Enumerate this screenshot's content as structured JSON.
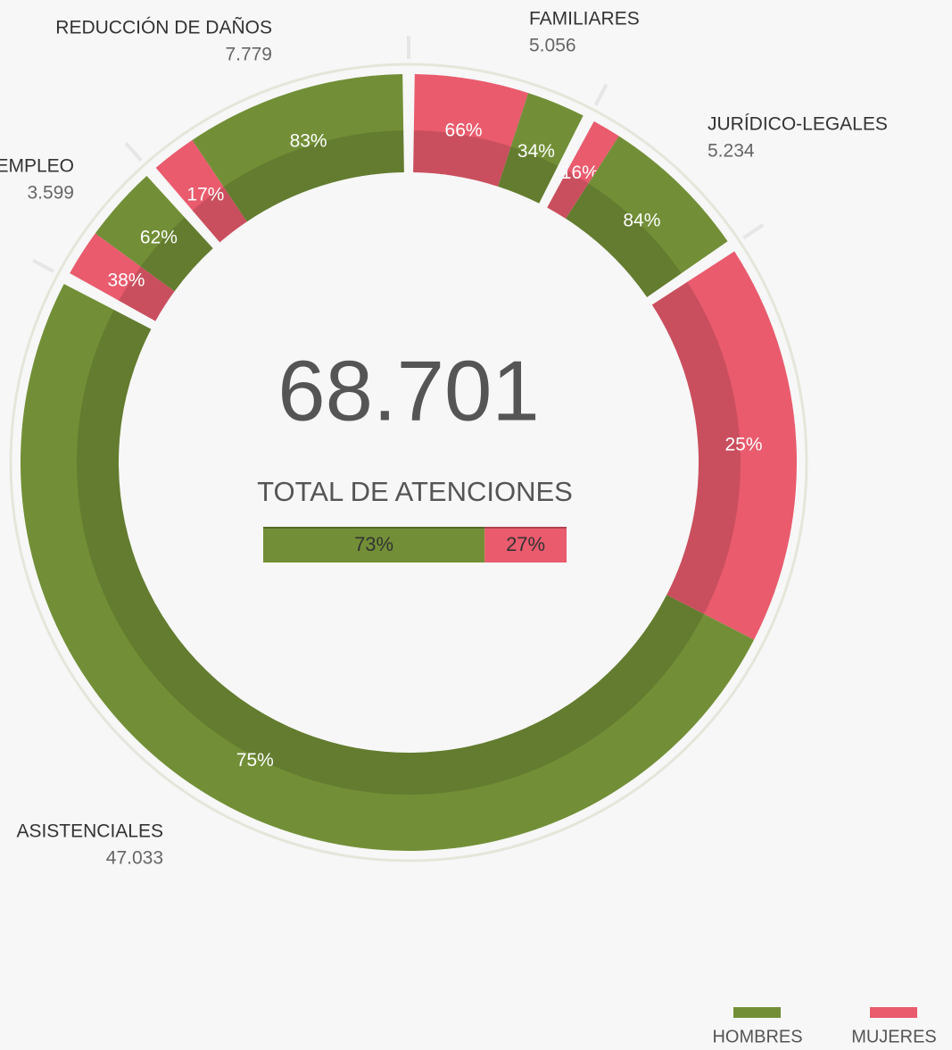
{
  "chart_data": {
    "type": "donut",
    "categories": [
      "FAMILIARES",
      "JURÍDICO-LEGALES",
      "ASISTENCIALES",
      "EMPLEO",
      "REDUCCIÓN DE DAÑOS"
    ],
    "values": [
      5056,
      5234,
      47033,
      3599,
      7779
    ],
    "value_labels": [
      "5.056",
      "5.234",
      "47.033",
      "3.599",
      "7.779"
    ],
    "series": [
      {
        "name": "HOMBRES",
        "color": "#728f37",
        "values": [
          34,
          84,
          75,
          62,
          83
        ],
        "value_labels": [
          "34%",
          "84%",
          "75%",
          "62%",
          "83%"
        ]
      },
      {
        "name": "MUJERES",
        "color": "#e95b6d",
        "values": [
          66,
          16,
          25,
          38,
          17
        ],
        "value_labels": [
          "66%",
          "16%",
          "25%",
          "38%",
          "17%"
        ]
      }
    ],
    "total": {
      "label": "68.701",
      "caption": "TOTAL DE ATENCIONES",
      "values": [
        73,
        27
      ],
      "value_labels": [
        "73%",
        "27%"
      ]
    }
  }
}
